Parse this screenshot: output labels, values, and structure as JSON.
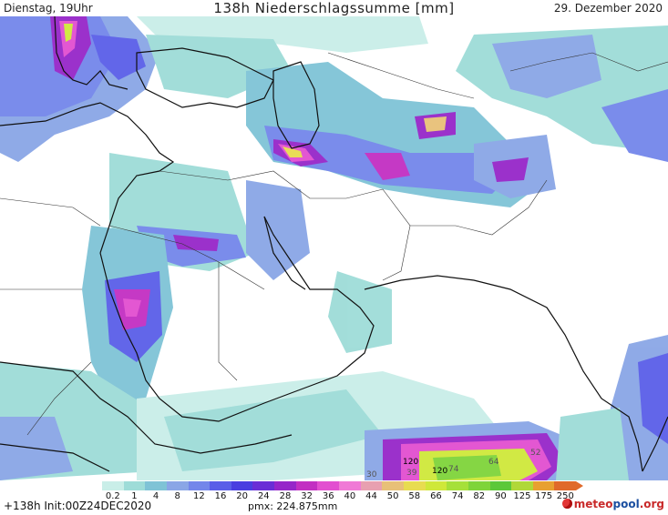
{
  "header": {
    "left": "Dienstag, 19Uhr",
    "title": "138h Niederschlagssumme [mm]",
    "date": "29. Dezember 2020"
  },
  "legend": {
    "labels": [
      "0.2",
      "1",
      "4",
      "8",
      "12",
      "16",
      "20",
      "24",
      "28",
      "32",
      "36",
      "40",
      "44",
      "50",
      "58",
      "66",
      "74",
      "82",
      "90",
      "125",
      "175",
      "250"
    ],
    "colors": [
      "#c9eee8",
      "#9edcd8",
      "#7fc3d6",
      "#8aa6e6",
      "#7386ea",
      "#5a5ee8",
      "#4a3ee0",
      "#6a2ed6",
      "#9626c9",
      "#c22fc2",
      "#e24fd0",
      "#f07ad6",
      "#e8a0b0",
      "#e8c078",
      "#e8dc50",
      "#cfe83a",
      "#a6e03a",
      "#7fd43a",
      "#5cc83a",
      "#b0d838",
      "#e8a030",
      "#e06a2a"
    ]
  },
  "map": {
    "markers": [
      {
        "text": "120",
        "color": "#000000"
      },
      {
        "text": "120",
        "color": "#000000"
      },
      {
        "text": "74",
        "color": "#555555"
      },
      {
        "text": "64",
        "color": "#555555"
      },
      {
        "text": "52",
        "color": "#555555"
      },
      {
        "text": "39",
        "color": "#555555"
      },
      {
        "text": "30",
        "color": "#555555"
      }
    ]
  },
  "footer": {
    "run": "+138h Init:00Z24DEC2020",
    "pmx": "pmx: 224.875mm",
    "logo_a": "meteo",
    "logo_b": "pool",
    "logo_c": ".org"
  }
}
